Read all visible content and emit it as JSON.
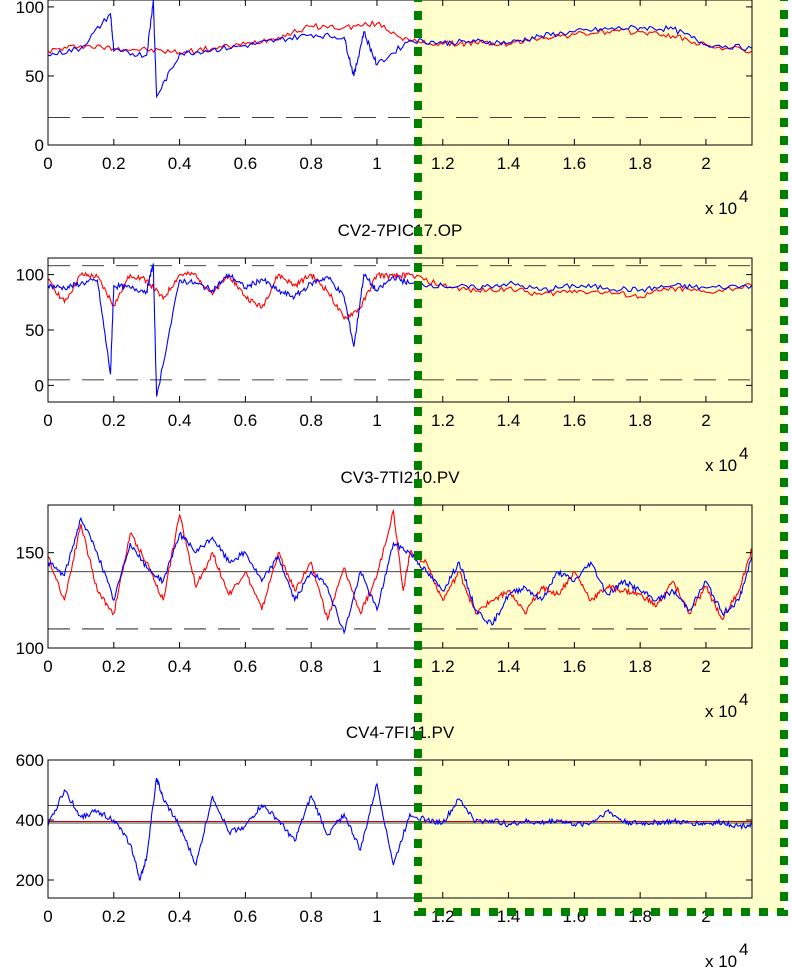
{
  "chart_data": [
    {
      "type": "line",
      "title": "",
      "x_multiplier": "x 10",
      "x_multiplier_exp": "4",
      "xlim": [
        0,
        2.14
      ],
      "ylim": [
        0,
        105
      ],
      "x_ticks": [
        "0",
        "0.2",
        "0.4",
        "0.6",
        "0.8",
        "1",
        "1.2",
        "1.4",
        "1.6",
        "1.8",
        "2"
      ],
      "y_ticks": [
        "0",
        "50",
        "100"
      ],
      "y_tick_values": [
        0,
        50,
        100
      ],
      "limits": {
        "upper": 105,
        "lower": 20,
        "style": "dashed"
      },
      "series": [
        {
          "color": "#ff0000",
          "x": [
            0,
            0.1,
            0.2,
            0.3,
            0.4,
            0.5,
            0.6,
            0.7,
            0.8,
            0.9,
            1.0,
            1.1,
            1.2,
            1.3,
            1.4,
            1.5,
            1.6,
            1.7,
            1.8,
            1.9,
            2.0,
            2.14
          ],
          "values": [
            68,
            72,
            70,
            69,
            67,
            70,
            73,
            78,
            86,
            85,
            88,
            75,
            73,
            74,
            73,
            78,
            80,
            82,
            82,
            79,
            72,
            68
          ]
        },
        {
          "color": "#0000ff",
          "x": [
            0,
            0.1,
            0.19,
            0.2,
            0.3,
            0.32,
            0.33,
            0.4,
            0.5,
            0.6,
            0.7,
            0.8,
            0.9,
            0.93,
            0.96,
            1.0,
            1.1,
            1.2,
            1.3,
            1.4,
            1.5,
            1.6,
            1.7,
            1.8,
            1.9,
            2.0,
            2.14
          ],
          "values": [
            65,
            70,
            95,
            68,
            65,
            105,
            35,
            66,
            69,
            72,
            76,
            80,
            78,
            50,
            82,
            58,
            76,
            74,
            75,
            74,
            79,
            82,
            84,
            85,
            84,
            73,
            70
          ]
        }
      ]
    },
    {
      "type": "line",
      "title": "CV2-7PIC17.OP",
      "x_multiplier": "x 10",
      "x_multiplier_exp": "4",
      "xlim": [
        0,
        2.14
      ],
      "ylim": [
        -15,
        115
      ],
      "x_ticks": [
        "0",
        "0.2",
        "0.4",
        "0.6",
        "0.8",
        "1",
        "1.2",
        "1.4",
        "1.6",
        "1.8",
        "2"
      ],
      "y_ticks": [
        "0",
        "50",
        "100"
      ],
      "y_tick_values": [
        0,
        50,
        100
      ],
      "limits": {
        "upper": 108,
        "lower": 5,
        "style": "dashed"
      },
      "series": [
        {
          "color": "#ff0000",
          "x": [
            0,
            0.05,
            0.1,
            0.15,
            0.2,
            0.25,
            0.3,
            0.35,
            0.4,
            0.45,
            0.5,
            0.55,
            0.6,
            0.65,
            0.7,
            0.75,
            0.8,
            0.85,
            0.9,
            0.95,
            1.0,
            1.05,
            1.1,
            1.2,
            1.3,
            1.4,
            1.5,
            1.6,
            1.7,
            1.8,
            1.9,
            2.0,
            2.14
          ],
          "values": [
            95,
            75,
            100,
            98,
            72,
            100,
            95,
            78,
            100,
            100,
            82,
            100,
            80,
            70,
            100,
            90,
            100,
            85,
            60,
            70,
            100,
            98,
            100,
            90,
            85,
            88,
            82,
            86,
            84,
            80,
            88,
            84,
            90
          ]
        },
        {
          "color": "#0000ff",
          "x": [
            0,
            0.05,
            0.1,
            0.15,
            0.19,
            0.2,
            0.25,
            0.3,
            0.32,
            0.33,
            0.4,
            0.45,
            0.5,
            0.55,
            0.6,
            0.65,
            0.7,
            0.75,
            0.8,
            0.85,
            0.9,
            0.93,
            0.96,
            1.0,
            1.05,
            1.1,
            1.2,
            1.3,
            1.4,
            1.5,
            1.6,
            1.7,
            1.8,
            1.9,
            2.0,
            2.14
          ],
          "values": [
            90,
            88,
            92,
            95,
            10,
            90,
            88,
            85,
            110,
            -10,
            95,
            92,
            86,
            100,
            88,
            96,
            85,
            80,
            92,
            98,
            80,
            35,
            100,
            85,
            98,
            92,
            90,
            88,
            92,
            86,
            90,
            88,
            86,
            90,
            88,
            90
          ]
        }
      ]
    },
    {
      "type": "line",
      "title": "CV3-7TI210.PV",
      "x_multiplier": "x 10",
      "x_multiplier_exp": "4",
      "xlim": [
        0,
        2.14
      ],
      "ylim": [
        100,
        175
      ],
      "x_ticks": [
        "0",
        "0.2",
        "0.4",
        "0.6",
        "0.8",
        "1",
        "1.2",
        "1.4",
        "1.6",
        "1.8",
        "2"
      ],
      "y_ticks": [
        "100",
        "150"
      ],
      "y_tick_values": [
        100,
        150
      ],
      "limits": {
        "upper": 140,
        "lower": 110,
        "style": "solid-dashed"
      },
      "series": [
        {
          "color": "#ff0000",
          "x": [
            0,
            0.05,
            0.1,
            0.15,
            0.2,
            0.25,
            0.3,
            0.35,
            0.4,
            0.45,
            0.5,
            0.55,
            0.6,
            0.65,
            0.7,
            0.75,
            0.8,
            0.85,
            0.9,
            0.95,
            1.0,
            1.05,
            1.08,
            1.1,
            1.15,
            1.2,
            1.25,
            1.3,
            1.35,
            1.4,
            1.45,
            1.5,
            1.55,
            1.6,
            1.65,
            1.7,
            1.75,
            1.8,
            1.85,
            1.9,
            1.95,
            2.0,
            2.05,
            2.1,
            2.14
          ],
          "values": [
            148,
            125,
            165,
            130,
            118,
            160,
            145,
            125,
            170,
            132,
            150,
            128,
            140,
            120,
            150,
            130,
            145,
            115,
            142,
            118,
            138,
            172,
            130,
            150,
            145,
            125,
            140,
            118,
            125,
            130,
            118,
            132,
            128,
            140,
            125,
            132,
            130,
            128,
            122,
            135,
            118,
            132,
            115,
            130,
            152
          ]
        },
        {
          "color": "#0000ff",
          "x": [
            0,
            0.05,
            0.1,
            0.15,
            0.2,
            0.25,
            0.3,
            0.35,
            0.4,
            0.45,
            0.5,
            0.55,
            0.6,
            0.65,
            0.7,
            0.75,
            0.8,
            0.85,
            0.9,
            0.95,
            1.0,
            1.05,
            1.1,
            1.15,
            1.2,
            1.25,
            1.3,
            1.35,
            1.4,
            1.45,
            1.5,
            1.55,
            1.6,
            1.65,
            1.7,
            1.75,
            1.8,
            1.85,
            1.9,
            1.95,
            2.0,
            2.05,
            2.1,
            2.14
          ],
          "values": [
            145,
            138,
            168,
            150,
            125,
            155,
            142,
            135,
            160,
            150,
            158,
            145,
            150,
            135,
            148,
            125,
            140,
            132,
            108,
            140,
            120,
            155,
            150,
            140,
            130,
            145,
            120,
            112,
            128,
            132,
            125,
            140,
            135,
            145,
            128,
            135,
            130,
            125,
            130,
            120,
            135,
            118,
            125,
            148
          ]
        }
      ]
    },
    {
      "type": "line",
      "title": "CV4-7FI11.PV",
      "x_multiplier": "x 10",
      "x_multiplier_exp": "4",
      "xlim": [
        0,
        2.14
      ],
      "ylim": [
        140,
        600
      ],
      "x_ticks": [
        "0",
        "0.2",
        "0.4",
        "0.6",
        "0.8",
        "1",
        "1.2",
        "1.4",
        "1.6",
        "1.8",
        "2"
      ],
      "y_ticks": [
        "200",
        "400",
        "600"
      ],
      "y_tick_values": [
        200,
        400,
        600
      ],
      "limits": {
        "upper": 448,
        "lower": 390,
        "style": "solid"
      },
      "series": [
        {
          "color": "#cc0000",
          "x": [
            0,
            2.14
          ],
          "values": [
            395,
            395
          ]
        },
        {
          "color": "#0000ff",
          "x": [
            0,
            0.05,
            0.1,
            0.15,
            0.2,
            0.25,
            0.28,
            0.3,
            0.33,
            0.35,
            0.4,
            0.45,
            0.5,
            0.55,
            0.6,
            0.65,
            0.7,
            0.75,
            0.8,
            0.85,
            0.9,
            0.95,
            1.0,
            1.05,
            1.1,
            1.15,
            1.2,
            1.25,
            1.3,
            1.35,
            1.4,
            1.45,
            1.5,
            1.55,
            1.6,
            1.65,
            1.7,
            1.75,
            1.8,
            1.85,
            1.9,
            1.95,
            2.0,
            2.05,
            2.1,
            2.14
          ],
          "values": [
            380,
            500,
            410,
            430,
            400,
            320,
            200,
            280,
            540,
            470,
            380,
            250,
            480,
            360,
            380,
            450,
            400,
            330,
            480,
            350,
            420,
            300,
            520,
            250,
            420,
            400,
            390,
            470,
            395,
            400,
            385,
            395,
            390,
            400,
            385,
            390,
            430,
            395,
            388,
            392,
            395,
            390,
            388,
            392,
            380,
            385
          ]
        }
      ]
    }
  ]
}
